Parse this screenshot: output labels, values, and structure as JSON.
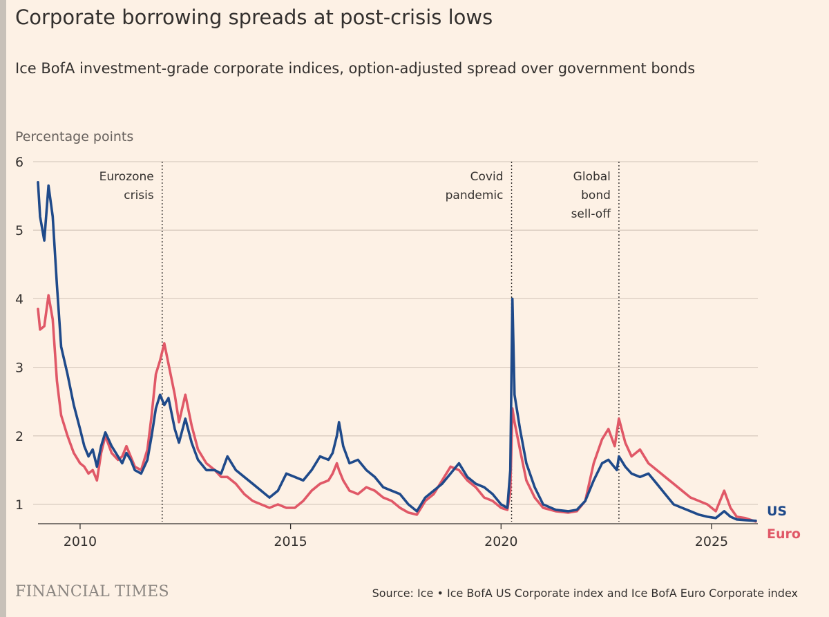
{
  "header": {
    "title": "Corporate borrowing spreads at post-crisis lows",
    "subtitle": "Ice BofA investment-grade corporate indices, option-adjusted spread over government bonds"
  },
  "footer": {
    "brand": "FINANCIAL TIMES",
    "source": "Source: Ice • Ice BofA US Corporate index and Ice BofA Euro Corporate index"
  },
  "chart_data": {
    "type": "line",
    "title": "Corporate borrowing spreads at post-crisis lows",
    "subtitle": "Ice BofA investment-grade corporate indices, option-adjusted spread over government bonds",
    "ylabel": "Percentage points",
    "xlabel": "",
    "xlim": [
      2009.0,
      2026.1
    ],
    "ylim": [
      0.7,
      6
    ],
    "yticks": [
      1,
      2,
      3,
      4,
      5,
      6
    ],
    "xticks": [
      2010,
      2015,
      2020,
      2025
    ],
    "grid": true,
    "legend": "right-end line labels",
    "annotations": [
      {
        "x": 2011.95,
        "lines": [
          "Eurozone",
          "crisis"
        ]
      },
      {
        "x": 2020.25,
        "lines": [
          "Covid",
          "pandemic"
        ]
      },
      {
        "x": 2022.8,
        "lines": [
          "Global",
          "bond",
          "sell-off"
        ]
      }
    ],
    "series": [
      {
        "name": "US",
        "color": "#1f4a8a",
        "points": [
          [
            2009.0,
            5.7
          ],
          [
            2009.05,
            5.2
          ],
          [
            2009.15,
            4.85
          ],
          [
            2009.25,
            5.65
          ],
          [
            2009.35,
            5.2
          ],
          [
            2009.45,
            4.2
          ],
          [
            2009.55,
            3.3
          ],
          [
            2009.7,
            2.9
          ],
          [
            2009.85,
            2.45
          ],
          [
            2010.0,
            2.1
          ],
          [
            2010.1,
            1.85
          ],
          [
            2010.2,
            1.7
          ],
          [
            2010.3,
            1.8
          ],
          [
            2010.4,
            1.55
          ],
          [
            2010.5,
            1.85
          ],
          [
            2010.6,
            2.05
          ],
          [
            2010.75,
            1.85
          ],
          [
            2010.9,
            1.7
          ],
          [
            2011.0,
            1.6
          ],
          [
            2011.1,
            1.75
          ],
          [
            2011.2,
            1.65
          ],
          [
            2011.3,
            1.5
          ],
          [
            2011.45,
            1.45
          ],
          [
            2011.6,
            1.65
          ],
          [
            2011.7,
            2.0
          ],
          [
            2011.8,
            2.4
          ],
          [
            2011.9,
            2.6
          ],
          [
            2012.0,
            2.45
          ],
          [
            2012.1,
            2.55
          ],
          [
            2012.25,
            2.1
          ],
          [
            2012.35,
            1.9
          ],
          [
            2012.5,
            2.25
          ],
          [
            2012.65,
            1.9
          ],
          [
            2012.8,
            1.65
          ],
          [
            2013.0,
            1.5
          ],
          [
            2013.2,
            1.5
          ],
          [
            2013.35,
            1.45
          ],
          [
            2013.5,
            1.7
          ],
          [
            2013.7,
            1.5
          ],
          [
            2013.9,
            1.4
          ],
          [
            2014.1,
            1.3
          ],
          [
            2014.3,
            1.2
          ],
          [
            2014.5,
            1.1
          ],
          [
            2014.7,
            1.2
          ],
          [
            2014.9,
            1.45
          ],
          [
            2015.1,
            1.4
          ],
          [
            2015.3,
            1.35
          ],
          [
            2015.5,
            1.5
          ],
          [
            2015.7,
            1.7
          ],
          [
            2015.9,
            1.65
          ],
          [
            2016.0,
            1.75
          ],
          [
            2016.1,
            2.0
          ],
          [
            2016.15,
            2.2
          ],
          [
            2016.25,
            1.85
          ],
          [
            2016.4,
            1.6
          ],
          [
            2016.6,
            1.65
          ],
          [
            2016.8,
            1.5
          ],
          [
            2017.0,
            1.4
          ],
          [
            2017.2,
            1.25
          ],
          [
            2017.4,
            1.2
          ],
          [
            2017.6,
            1.15
          ],
          [
            2017.8,
            1.0
          ],
          [
            2018.0,
            0.9
          ],
          [
            2018.2,
            1.1
          ],
          [
            2018.4,
            1.2
          ],
          [
            2018.6,
            1.3
          ],
          [
            2018.8,
            1.45
          ],
          [
            2019.0,
            1.6
          ],
          [
            2019.2,
            1.4
          ],
          [
            2019.4,
            1.3
          ],
          [
            2019.6,
            1.25
          ],
          [
            2019.8,
            1.15
          ],
          [
            2020.0,
            1.0
          ],
          [
            2020.15,
            0.95
          ],
          [
            2020.22,
            1.5
          ],
          [
            2020.27,
            4.0
          ],
          [
            2020.32,
            2.6
          ],
          [
            2020.45,
            2.1
          ],
          [
            2020.6,
            1.6
          ],
          [
            2020.8,
            1.25
          ],
          [
            2021.0,
            1.0
          ],
          [
            2021.3,
            0.92
          ],
          [
            2021.6,
            0.9
          ],
          [
            2021.8,
            0.92
          ],
          [
            2022.0,
            1.05
          ],
          [
            2022.2,
            1.35
          ],
          [
            2022.4,
            1.6
          ],
          [
            2022.55,
            1.65
          ],
          [
            2022.75,
            1.5
          ],
          [
            2022.8,
            1.7
          ],
          [
            2022.95,
            1.55
          ],
          [
            2023.1,
            1.45
          ],
          [
            2023.3,
            1.4
          ],
          [
            2023.5,
            1.45
          ],
          [
            2023.7,
            1.3
          ],
          [
            2023.9,
            1.15
          ],
          [
            2024.1,
            1.0
          ],
          [
            2024.3,
            0.95
          ],
          [
            2024.5,
            0.9
          ],
          [
            2024.7,
            0.85
          ],
          [
            2024.9,
            0.82
          ],
          [
            2025.1,
            0.8
          ],
          [
            2025.3,
            0.9
          ],
          [
            2025.45,
            0.82
          ],
          [
            2025.6,
            0.78
          ],
          [
            2025.8,
            0.77
          ],
          [
            2026.05,
            0.76
          ]
        ]
      },
      {
        "name": "Euro",
        "color": "#e05867",
        "points": [
          [
            2009.0,
            3.85
          ],
          [
            2009.05,
            3.55
          ],
          [
            2009.15,
            3.6
          ],
          [
            2009.25,
            4.05
          ],
          [
            2009.35,
            3.7
          ],
          [
            2009.45,
            2.8
          ],
          [
            2009.55,
            2.3
          ],
          [
            2009.7,
            2.0
          ],
          [
            2009.85,
            1.75
          ],
          [
            2010.0,
            1.6
          ],
          [
            2010.1,
            1.55
          ],
          [
            2010.2,
            1.45
          ],
          [
            2010.3,
            1.5
          ],
          [
            2010.4,
            1.35
          ],
          [
            2010.5,
            1.75
          ],
          [
            2010.6,
            2.0
          ],
          [
            2010.75,
            1.75
          ],
          [
            2010.9,
            1.65
          ],
          [
            2011.0,
            1.7
          ],
          [
            2011.1,
            1.85
          ],
          [
            2011.2,
            1.7
          ],
          [
            2011.3,
            1.55
          ],
          [
            2011.45,
            1.5
          ],
          [
            2011.6,
            1.8
          ],
          [
            2011.7,
            2.3
          ],
          [
            2011.8,
            2.9
          ],
          [
            2011.9,
            3.1
          ],
          [
            2012.0,
            3.35
          ],
          [
            2012.1,
            3.05
          ],
          [
            2012.25,
            2.6
          ],
          [
            2012.35,
            2.2
          ],
          [
            2012.5,
            2.6
          ],
          [
            2012.65,
            2.15
          ],
          [
            2012.8,
            1.8
          ],
          [
            2013.0,
            1.6
          ],
          [
            2013.2,
            1.5
          ],
          [
            2013.35,
            1.4
          ],
          [
            2013.5,
            1.4
          ],
          [
            2013.7,
            1.3
          ],
          [
            2013.9,
            1.15
          ],
          [
            2014.1,
            1.05
          ],
          [
            2014.3,
            1.0
          ],
          [
            2014.5,
            0.95
          ],
          [
            2014.7,
            1.0
          ],
          [
            2014.9,
            0.95
          ],
          [
            2015.1,
            0.95
          ],
          [
            2015.3,
            1.05
          ],
          [
            2015.5,
            1.2
          ],
          [
            2015.7,
            1.3
          ],
          [
            2015.9,
            1.35
          ],
          [
            2016.0,
            1.45
          ],
          [
            2016.1,
            1.6
          ],
          [
            2016.15,
            1.5
          ],
          [
            2016.25,
            1.35
          ],
          [
            2016.4,
            1.2
          ],
          [
            2016.6,
            1.15
          ],
          [
            2016.8,
            1.25
          ],
          [
            2017.0,
            1.2
          ],
          [
            2017.2,
            1.1
          ],
          [
            2017.4,
            1.05
          ],
          [
            2017.6,
            0.95
          ],
          [
            2017.8,
            0.88
          ],
          [
            2018.0,
            0.85
          ],
          [
            2018.2,
            1.05
          ],
          [
            2018.4,
            1.15
          ],
          [
            2018.6,
            1.35
          ],
          [
            2018.8,
            1.55
          ],
          [
            2019.0,
            1.5
          ],
          [
            2019.2,
            1.35
          ],
          [
            2019.4,
            1.25
          ],
          [
            2019.6,
            1.1
          ],
          [
            2019.8,
            1.05
          ],
          [
            2020.0,
            0.95
          ],
          [
            2020.15,
            0.92
          ],
          [
            2020.22,
            1.2
          ],
          [
            2020.27,
            2.4
          ],
          [
            2020.32,
            2.2
          ],
          [
            2020.45,
            1.8
          ],
          [
            2020.6,
            1.35
          ],
          [
            2020.8,
            1.1
          ],
          [
            2021.0,
            0.95
          ],
          [
            2021.3,
            0.9
          ],
          [
            2021.6,
            0.88
          ],
          [
            2021.8,
            0.9
          ],
          [
            2022.0,
            1.05
          ],
          [
            2022.2,
            1.6
          ],
          [
            2022.4,
            1.95
          ],
          [
            2022.55,
            2.1
          ],
          [
            2022.7,
            1.85
          ],
          [
            2022.8,
            2.25
          ],
          [
            2022.95,
            1.9
          ],
          [
            2023.1,
            1.7
          ],
          [
            2023.3,
            1.8
          ],
          [
            2023.5,
            1.6
          ],
          [
            2023.7,
            1.5
          ],
          [
            2023.9,
            1.4
          ],
          [
            2024.1,
            1.3
          ],
          [
            2024.3,
            1.2
          ],
          [
            2024.5,
            1.1
          ],
          [
            2024.7,
            1.05
          ],
          [
            2024.9,
            1.0
          ],
          [
            2025.1,
            0.9
          ],
          [
            2025.3,
            1.2
          ],
          [
            2025.45,
            0.95
          ],
          [
            2025.6,
            0.82
          ],
          [
            2025.8,
            0.8
          ],
          [
            2026.05,
            0.75
          ]
        ]
      }
    ]
  }
}
